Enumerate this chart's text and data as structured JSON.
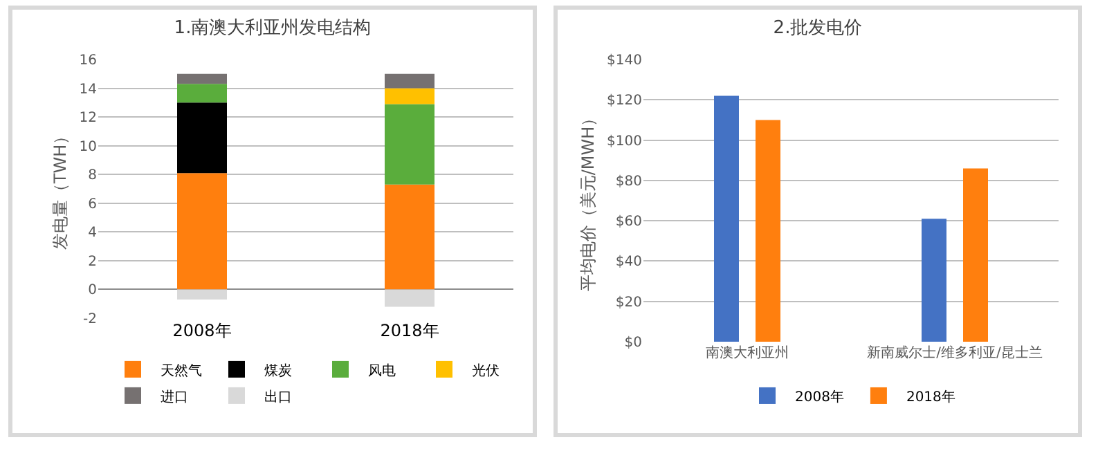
{
  "chart_data": [
    {
      "type": "bar",
      "title": "1.南澳大利亚州发电结构",
      "ylabel": "发电量（TWH）",
      "categories": [
        "2008年",
        "2018年"
      ],
      "stacked": true,
      "grid": "y",
      "legend": "bottom",
      "ylim": [
        -2,
        16
      ],
      "yticks": [
        -2,
        0,
        2,
        4,
        6,
        8,
        10,
        12,
        14,
        16
      ],
      "series": [
        {
          "name": "天然气",
          "color": "#ff7f0e",
          "values": [
            8.1,
            7.3
          ]
        },
        {
          "name": "煤炭",
          "color": "#000000",
          "values": [
            4.9,
            0
          ]
        },
        {
          "name": "风电",
          "color": "#5aad3c",
          "values": [
            1.3,
            5.6
          ]
        },
        {
          "name": "光伏",
          "color": "#ffc000",
          "values": [
            0,
            1.1
          ]
        },
        {
          "name": "进口",
          "color": "#767171",
          "values": [
            0.7,
            1.0
          ]
        },
        {
          "name": "出口",
          "color": "#d9d9d9",
          "values": [
            -0.7,
            -1.2
          ]
        }
      ]
    },
    {
      "type": "bar",
      "title": "2.批发电价",
      "ylabel": "平均电价（美元/MWH）",
      "categories": [
        "南澳大利亚州",
        "新南威尔士/维多利亚/昆士兰"
      ],
      "grid": "y",
      "legend": "bottom",
      "ylim": [
        0,
        140
      ],
      "yticks": [
        {
          "value": 0,
          "label": "$0"
        },
        {
          "value": 20,
          "label": "$20"
        },
        {
          "value": 40,
          "label": "$40"
        },
        {
          "value": 60,
          "label": "$60"
        },
        {
          "value": 80,
          "label": "$80"
        },
        {
          "value": 100,
          "label": "$100"
        },
        {
          "value": 120,
          "label": "$120"
        },
        {
          "value": 140,
          "label": "$140"
        }
      ],
      "series": [
        {
          "name": "2008年",
          "color": "#4472c4",
          "values": [
            122,
            61
          ]
        },
        {
          "name": "2018年",
          "color": "#ff7f0e",
          "values": [
            110,
            86
          ]
        }
      ]
    }
  ]
}
